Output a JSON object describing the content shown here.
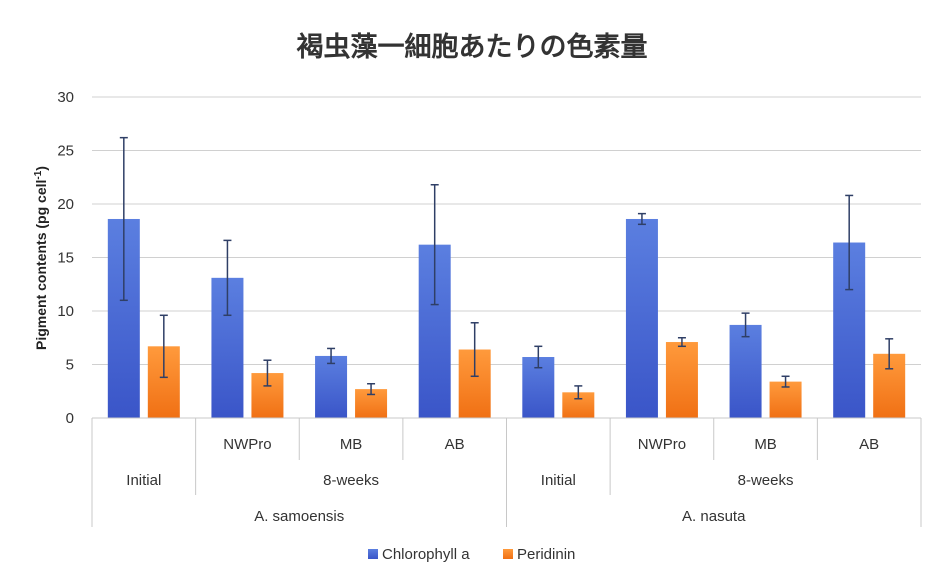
{
  "chart_data": {
    "type": "bar",
    "title": "褐虫藻一細胞あたりの色素量",
    "ylabel": "Pigment contents (pg cell",
    "ylabel_sup": "-1",
    "ylabel_close": ")",
    "ylim": [
      0,
      30
    ],
    "yticks": [
      0,
      5,
      10,
      15,
      20,
      25,
      30
    ],
    "grid": true,
    "legend_position": "bottom",
    "categories": [
      "Initial",
      "NWPro",
      "MB",
      "AB",
      "Initial",
      "NWPro",
      "MB",
      "AB"
    ],
    "level1_labels": [
      "",
      "NWPro",
      "MB",
      "AB",
      "",
      "NWPro",
      "MB",
      "AB"
    ],
    "level2_groups": [
      {
        "label": "Initial",
        "span": 1
      },
      {
        "label": "8-weeks",
        "span": 3
      },
      {
        "label": "Initial",
        "span": 1
      },
      {
        "label": "8-weeks",
        "span": 3
      }
    ],
    "level3_groups": [
      {
        "label": "A. samoensis",
        "span": 4
      },
      {
        "label": "A. nasuta",
        "span": 4
      }
    ],
    "series": [
      {
        "name": "Chlorophyll a",
        "color": "#4a6bd6",
        "values": [
          18.6,
          13.1,
          5.8,
          16.2,
          5.7,
          18.6,
          8.7,
          16.4
        ],
        "error": [
          7.6,
          3.5,
          0.7,
          5.6,
          1.0,
          0.5,
          1.1,
          4.4
        ]
      },
      {
        "name": "Peridinin",
        "color": "#f07b22",
        "values": [
          6.7,
          4.2,
          2.7,
          6.4,
          2.4,
          7.1,
          3.4,
          6.0
        ],
        "error": [
          2.9,
          1.2,
          0.5,
          2.5,
          0.6,
          0.4,
          0.5,
          1.4
        ]
      }
    ]
  }
}
